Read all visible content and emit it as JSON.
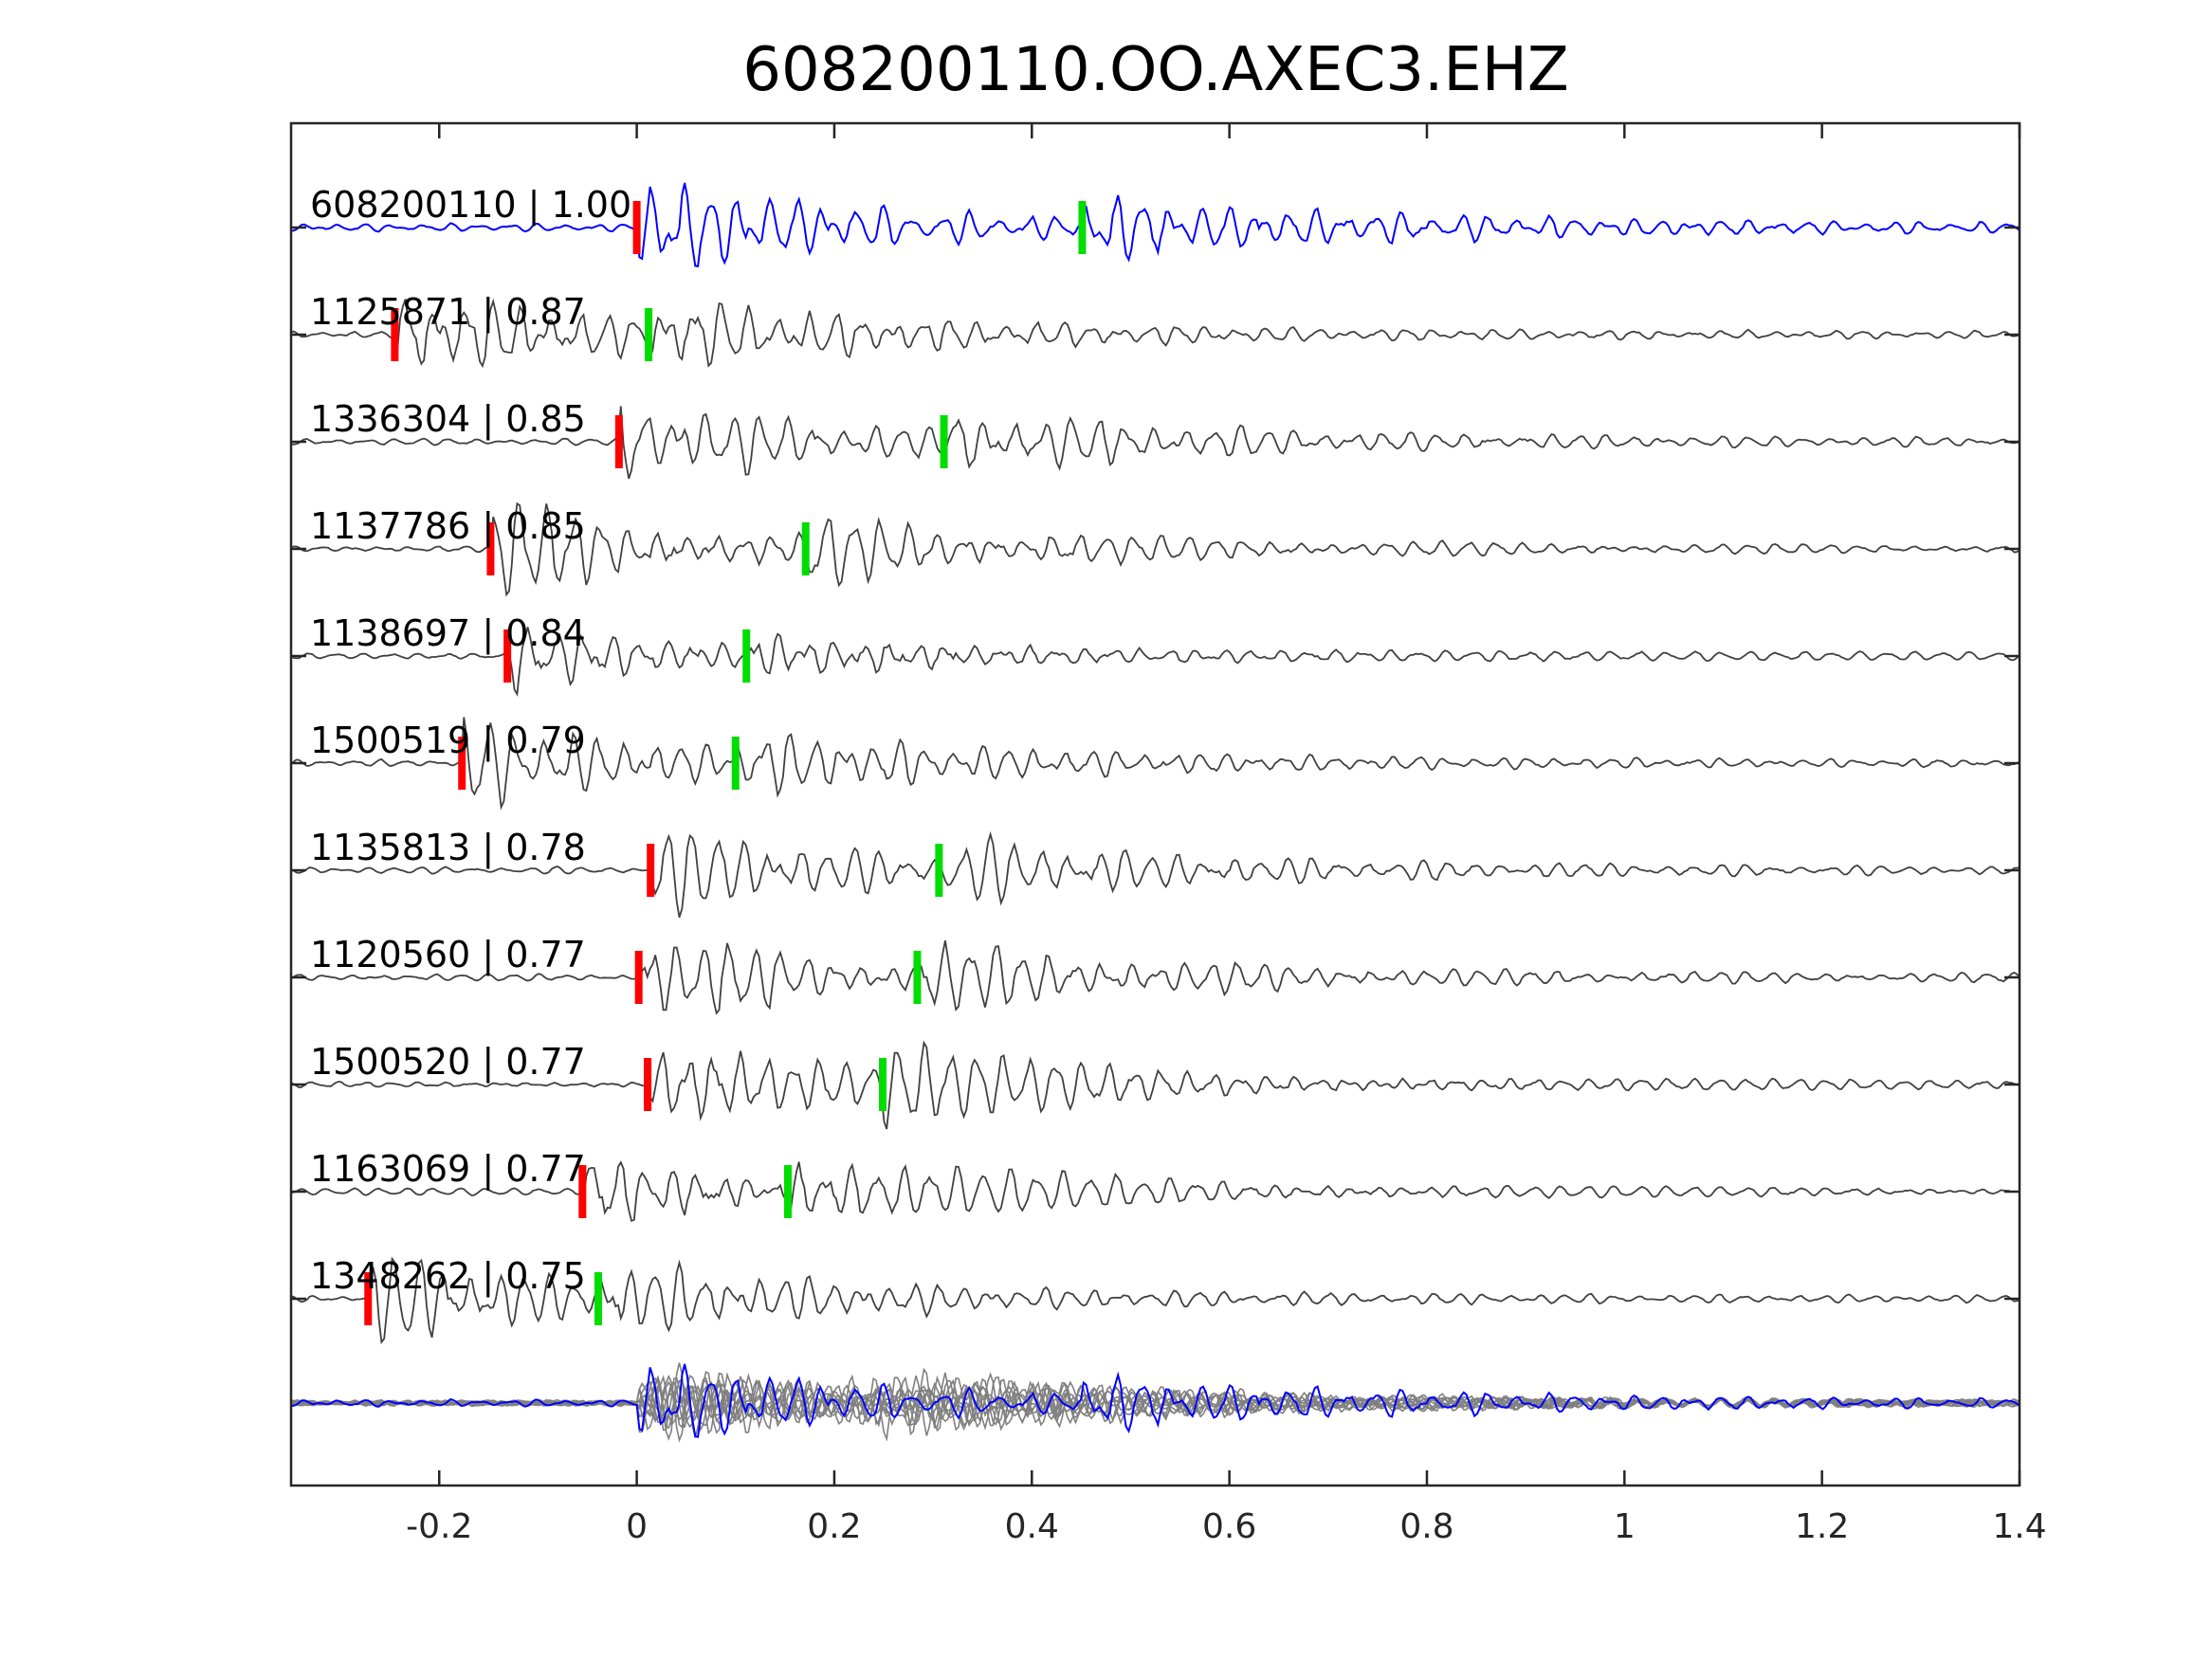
{
  "chart_data": {
    "type": "line",
    "title": "608200110.OO.AXEC3.EHZ",
    "xlabel": "",
    "ylabel": "",
    "xlim": [
      -0.35,
      1.4
    ],
    "xticks": [
      -0.2,
      0,
      0.2,
      0.4,
      0.6,
      0.8,
      1,
      1.2,
      1.4
    ],
    "xtick_labels": [
      "-0.2",
      "0",
      "0.2",
      "0.4",
      "0.6",
      "0.8",
      "1",
      "1.2",
      "1.4"
    ],
    "grid": false,
    "legend": "none",
    "colors": {
      "template": "#0000ff",
      "match": "#404040",
      "stack_match": "#808080",
      "p_pick": "#ff0000",
      "s_pick": "#00dd00"
    },
    "series": [
      {
        "name": "608200110 | 1.00",
        "id": "608200110",
        "cc": "1.00",
        "p_pick": 0.0,
        "s_pick": 0.451
      },
      {
        "name": "1125871 | 0.87",
        "id": "1125871",
        "cc": "0.87",
        "p_pick": -0.245,
        "s_pick": 0.012
      },
      {
        "name": "1336304 | 0.85",
        "id": "1336304",
        "cc": "0.85",
        "p_pick": -0.018,
        "s_pick": 0.311
      },
      {
        "name": "1137786 | 0.85",
        "id": "1137786",
        "cc": "0.85",
        "p_pick": -0.148,
        "s_pick": 0.171
      },
      {
        "name": "1138697 | 0.84",
        "id": "1138697",
        "cc": "0.84",
        "p_pick": -0.131,
        "s_pick": 0.111
      },
      {
        "name": "1500519 | 0.79",
        "id": "1500519",
        "cc": "0.79",
        "p_pick": -0.177,
        "s_pick": 0.1
      },
      {
        "name": "1135813 | 0.78",
        "id": "1135813",
        "cc": "0.78",
        "p_pick": 0.014,
        "s_pick": 0.306
      },
      {
        "name": "1120560 | 0.77",
        "id": "1120560",
        "cc": "0.77",
        "p_pick": 0.002,
        "s_pick": 0.284
      },
      {
        "name": "1500520 | 0.77",
        "id": "1500520",
        "cc": "0.77",
        "p_pick": 0.011,
        "s_pick": 0.249
      },
      {
        "name": "1163069 | 0.77",
        "id": "1163069",
        "cc": "0.77",
        "p_pick": -0.055,
        "s_pick": 0.153
      },
      {
        "name": "1348262 | 0.75",
        "id": "1348262",
        "cc": "0.75",
        "p_pick": -0.272,
        "s_pick": -0.039
      }
    ]
  }
}
